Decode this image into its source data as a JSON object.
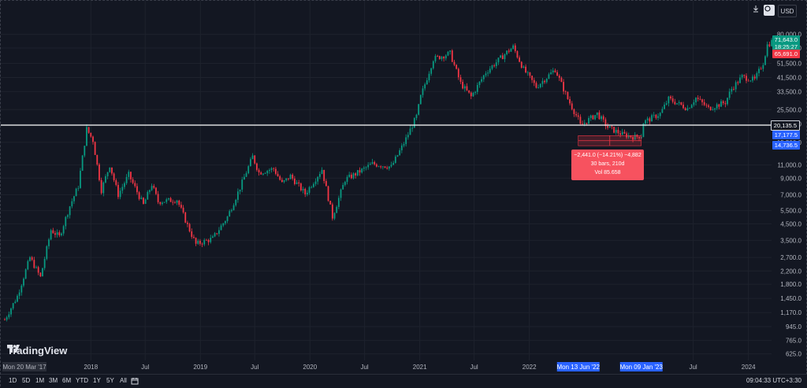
{
  "header": {
    "download_icon": "download-icon",
    "snapshot_icon": "camera-icon",
    "currency": "USD"
  },
  "branding": {
    "logo_text": "TradingView"
  },
  "chart_data": {
    "type": "candlestick",
    "title": "",
    "y_scale": "log",
    "yticks": [
      80000,
      65000,
      51500,
      41500,
      33500,
      25500,
      20500,
      15500,
      11000,
      9000,
      7000,
      5500,
      4500,
      3500,
      2700,
      2200,
      1800,
      1450,
      1170,
      945,
      765,
      625
    ],
    "ytick_labels": [
      "80,000.0",
      "65,000.0",
      "51,500.0",
      "41,500.0",
      "33,500.0",
      "25,500.0",
      "20,500.0",
      "15,500.0",
      "11,000.0",
      "9,000.0",
      "7,000.0",
      "5,500.0",
      "4,500.0",
      "3,500.0",
      "2,700.0",
      "2,200.0",
      "1,800.0",
      "1,450.0",
      "1,170.0",
      "945.0",
      "765.0",
      "625.0"
    ],
    "xtick_labels": [
      {
        "date": "2018-01-01",
        "label": "2018"
      },
      {
        "date": "2018-07-01",
        "label": "Jul"
      },
      {
        "date": "2019-01-01",
        "label": "2019"
      },
      {
        "date": "2019-07-01",
        "label": "Jul"
      },
      {
        "date": "2020-01-01",
        "label": "2020"
      },
      {
        "date": "2020-07-01",
        "label": "Jul"
      },
      {
        "date": "2021-01-01",
        "label": "2021"
      },
      {
        "date": "2021-07-01",
        "label": "Jul"
      },
      {
        "date": "2022-01-01",
        "label": "2022"
      },
      {
        "date": "2023-07-01",
        "label": "Jul"
      },
      {
        "date": "2024-01-01",
        "label": "2024"
      }
    ],
    "x_start_label": "Mon 20 Mar '17",
    "x_highlight_labels": [
      "Mon 13 Jun '22",
      "Mon 09 Jan '23"
    ],
    "price_path": [
      [
        "2017-03-20",
        1050
      ],
      [
        "2017-05-01",
        1500
      ],
      [
        "2017-06-12",
        2700
      ],
      [
        "2017-07-17",
        2000
      ],
      [
        "2017-08-21",
        4100
      ],
      [
        "2017-09-18",
        3700
      ],
      [
        "2017-10-23",
        5900
      ],
      [
        "2017-11-20",
        8000
      ],
      [
        "2017-12-18",
        19000
      ],
      [
        "2018-01-08",
        16000
      ],
      [
        "2018-02-05",
        7500
      ],
      [
        "2018-03-05",
        11000
      ],
      [
        "2018-04-02",
        7000
      ],
      [
        "2018-05-07",
        9500
      ],
      [
        "2018-06-25",
        6000
      ],
      [
        "2018-07-23",
        8200
      ],
      [
        "2018-08-13",
        6300
      ],
      [
        "2018-10-15",
        6500
      ],
      [
        "2018-11-19",
        4400
      ],
      [
        "2018-12-17",
        3300
      ],
      [
        "2019-02-11",
        3600
      ],
      [
        "2019-04-01",
        5000
      ],
      [
        "2019-05-13",
        7800
      ],
      [
        "2019-06-24",
        12500
      ],
      [
        "2019-07-15",
        9800
      ],
      [
        "2019-09-02",
        10400
      ],
      [
        "2019-09-30",
        8300
      ],
      [
        "2019-10-28",
        9300
      ],
      [
        "2019-12-16",
        7100
      ],
      [
        "2020-02-10",
        10300
      ],
      [
        "2020-03-16",
        5000
      ],
      [
        "2020-04-27",
        8800
      ],
      [
        "2020-06-01",
        9600
      ],
      [
        "2020-07-27",
        11200
      ],
      [
        "2020-09-28",
        10700
      ],
      [
        "2020-11-09",
        15300
      ],
      [
        "2020-12-21",
        23000
      ],
      [
        "2021-01-04",
        31000
      ],
      [
        "2021-02-15",
        55000
      ],
      [
        "2021-04-12",
        60000
      ],
      [
        "2021-05-17",
        38000
      ],
      [
        "2021-06-21",
        31000
      ],
      [
        "2021-08-09",
        45000
      ],
      [
        "2021-10-18",
        61000
      ],
      [
        "2021-11-08",
        66000
      ],
      [
        "2021-12-13",
        47000
      ],
      [
        "2022-01-24",
        36000
      ],
      [
        "2022-03-28",
        47000
      ],
      [
        "2022-05-09",
        30000
      ],
      [
        "2022-06-13",
        22000
      ],
      [
        "2022-06-20",
        20000
      ],
      [
        "2022-08-15",
        24000
      ],
      [
        "2022-09-19",
        19500
      ],
      [
        "2022-11-07",
        17500
      ],
      [
        "2022-12-19",
        16800
      ],
      [
        "2023-01-09",
        17200
      ],
      [
        "2023-01-16",
        21000
      ],
      [
        "2023-03-13",
        24000
      ],
      [
        "2023-04-10",
        30000
      ],
      [
        "2023-06-12",
        26000
      ],
      [
        "2023-07-10",
        30500
      ],
      [
        "2023-08-21",
        26000
      ],
      [
        "2023-10-16",
        28500
      ],
      [
        "2023-11-06",
        35000
      ],
      [
        "2023-12-11",
        42000
      ],
      [
        "2024-01-22",
        40000
      ],
      [
        "2024-02-19",
        52000
      ],
      [
        "2024-03-04",
        68000
      ],
      [
        "2024-03-18",
        71643
      ]
    ],
    "price_labels": [
      {
        "value": "71,643.0",
        "color": "#089981"
      },
      {
        "value": "18:25:27",
        "color": "#089981"
      },
      {
        "value": "65,691.0",
        "color": "#f23645"
      }
    ],
    "horizontal_line": {
      "value": 20135.5,
      "label": "20,135.5"
    },
    "measure": {
      "start_date": "2022-06-13",
      "end_date": "2023-01-09",
      "high": 17177.5,
      "low": 14736.5,
      "high_label": "17,177.5",
      "low_label": "14,736.5",
      "line1": "−2,441.0 (−14.21%) −4,882",
      "line2": "30 bars, 210d",
      "line3": "Vol 85.658"
    },
    "up_color": "#089981",
    "down_color": "#f23645"
  },
  "bottom_bar": {
    "ranges": [
      "1D",
      "5D",
      "1M",
      "3M",
      "6M",
      "YTD",
      "1Y",
      "5Y",
      "All"
    ],
    "calendar_icon": "calendar-icon",
    "clock": "09:04:33 UTC+3:30"
  }
}
